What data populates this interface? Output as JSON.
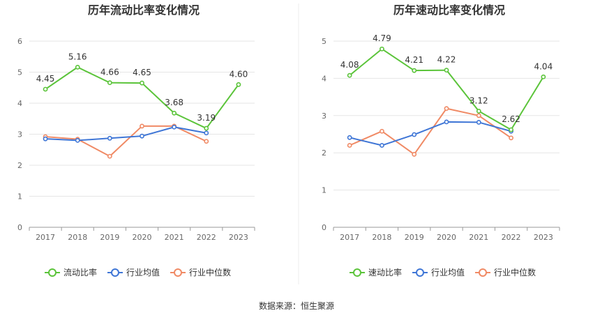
{
  "colors": {
    "primary": "#5bc43a",
    "average": "#3f76d6",
    "median": "#f08a65",
    "grid": "#e6e6e6",
    "divider": "#eeeeee"
  },
  "footer": {
    "source": "数据来源：恒生聚源"
  },
  "chart_data": [
    {
      "type": "line",
      "title": "历年流动比率变化情况",
      "categories": [
        "2017",
        "2018",
        "2019",
        "2020",
        "2021",
        "2022",
        "2023"
      ],
      "ylim": [
        0,
        6
      ],
      "yticks": [
        "0",
        "1",
        "2",
        "3",
        "4",
        "5",
        "6"
      ],
      "series": [
        {
          "name": "流动比率",
          "values": [
            4.45,
            5.16,
            4.66,
            4.65,
            3.68,
            3.19,
            4.6
          ],
          "labels": [
            "4.45",
            "5.16",
            "4.66",
            "4.65",
            "3.68",
            "3.19",
            "4.60"
          ]
        },
        {
          "name": "行业均值",
          "values": [
            2.85,
            2.8,
            2.87,
            2.94,
            3.23,
            3.04,
            null
          ]
        },
        {
          "name": "行业中位数",
          "values": [
            2.92,
            2.84,
            2.29,
            3.26,
            3.26,
            2.77,
            null
          ]
        }
      ]
    },
    {
      "type": "line",
      "title": "历年速动比率变化情况",
      "categories": [
        "2017",
        "2018",
        "2019",
        "2020",
        "2021",
        "2022",
        "2023"
      ],
      "ylim": [
        0,
        5
      ],
      "yticks": [
        "0",
        "1",
        "2",
        "3",
        "4",
        "5"
      ],
      "series": [
        {
          "name": "速动比率",
          "values": [
            4.08,
            4.79,
            4.21,
            4.22,
            3.12,
            2.62,
            4.04
          ],
          "labels": [
            "4.08",
            "4.79",
            "4.21",
            "4.22",
            "3.12",
            "2.62",
            "4.04"
          ]
        },
        {
          "name": "行业均值",
          "values": [
            2.41,
            2.2,
            2.49,
            2.83,
            2.82,
            2.58,
            null
          ]
        },
        {
          "name": "行业中位数",
          "values": [
            2.2,
            2.58,
            1.96,
            3.19,
            3.0,
            2.4,
            null
          ]
        }
      ]
    }
  ]
}
